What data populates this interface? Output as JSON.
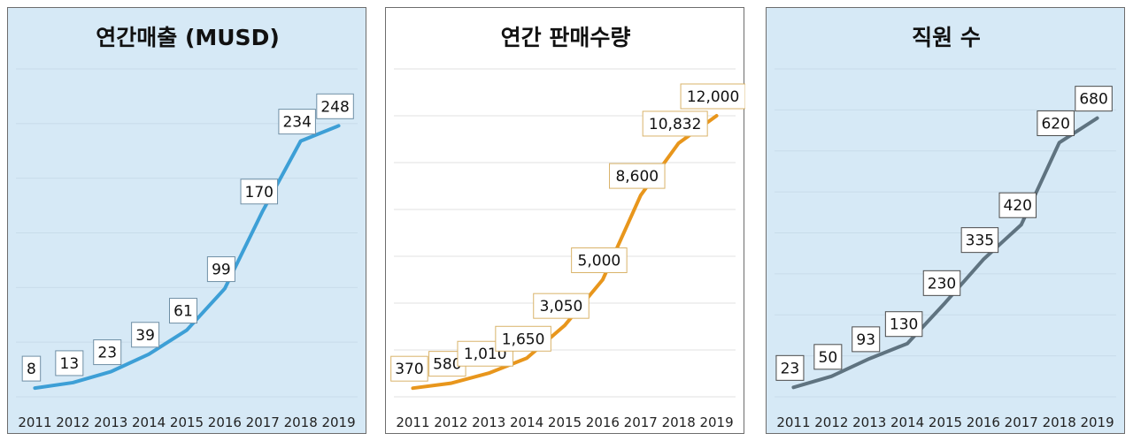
{
  "chart_data": [
    {
      "type": "line",
      "title": "연간매출 (MUSD)",
      "categories": [
        "2011",
        "2012",
        "2013",
        "2014",
        "2015",
        "2016",
        "2017",
        "2018",
        "2019"
      ],
      "values": [
        8,
        13,
        23,
        39,
        61,
        99,
        170,
        234,
        248
      ],
      "labels": [
        "8",
        "13",
        "23",
        "39",
        "61",
        "99",
        "170",
        "234",
        "248"
      ],
      "ylim": [
        0,
        300
      ],
      "ystep": 50,
      "grid": true,
      "color": "#3d9fd6",
      "label_border": "#6f8fa5",
      "xlabel": "",
      "ylabel": ""
    },
    {
      "type": "line",
      "title": "연간 판매수량",
      "categories": [
        "2011",
        "2012",
        "2013",
        "2014",
        "2015",
        "2016",
        "2017",
        "2018",
        "2019"
      ],
      "values": [
        370,
        580,
        1010,
        1650,
        3050,
        5000,
        8600,
        10832,
        12000
      ],
      "labels": [
        "370",
        "580",
        "1,010",
        "1,650",
        "3,050",
        "5,000",
        "8,600",
        "10,832",
        "12,000"
      ],
      "ylim": [
        0,
        14000
      ],
      "ystep": 2000,
      "grid": true,
      "color": "#e8961c",
      "label_border": "#d9b36a",
      "xlabel": "",
      "ylabel": ""
    },
    {
      "type": "line",
      "title": "직원 수",
      "categories": [
        "2011",
        "2012",
        "2013",
        "2014",
        "2015",
        "2016",
        "2017",
        "2018",
        "2019"
      ],
      "values": [
        23,
        50,
        93,
        130,
        230,
        335,
        420,
        620,
        680
      ],
      "labels": [
        "23",
        "50",
        "93",
        "130",
        "230",
        "335",
        "420",
        "620",
        "680"
      ],
      "ylim": [
        0,
        800
      ],
      "ystep": 100,
      "grid": true,
      "color": "#5f7380",
      "label_border": "#4a4a4a",
      "xlabel": "",
      "ylabel": ""
    }
  ]
}
